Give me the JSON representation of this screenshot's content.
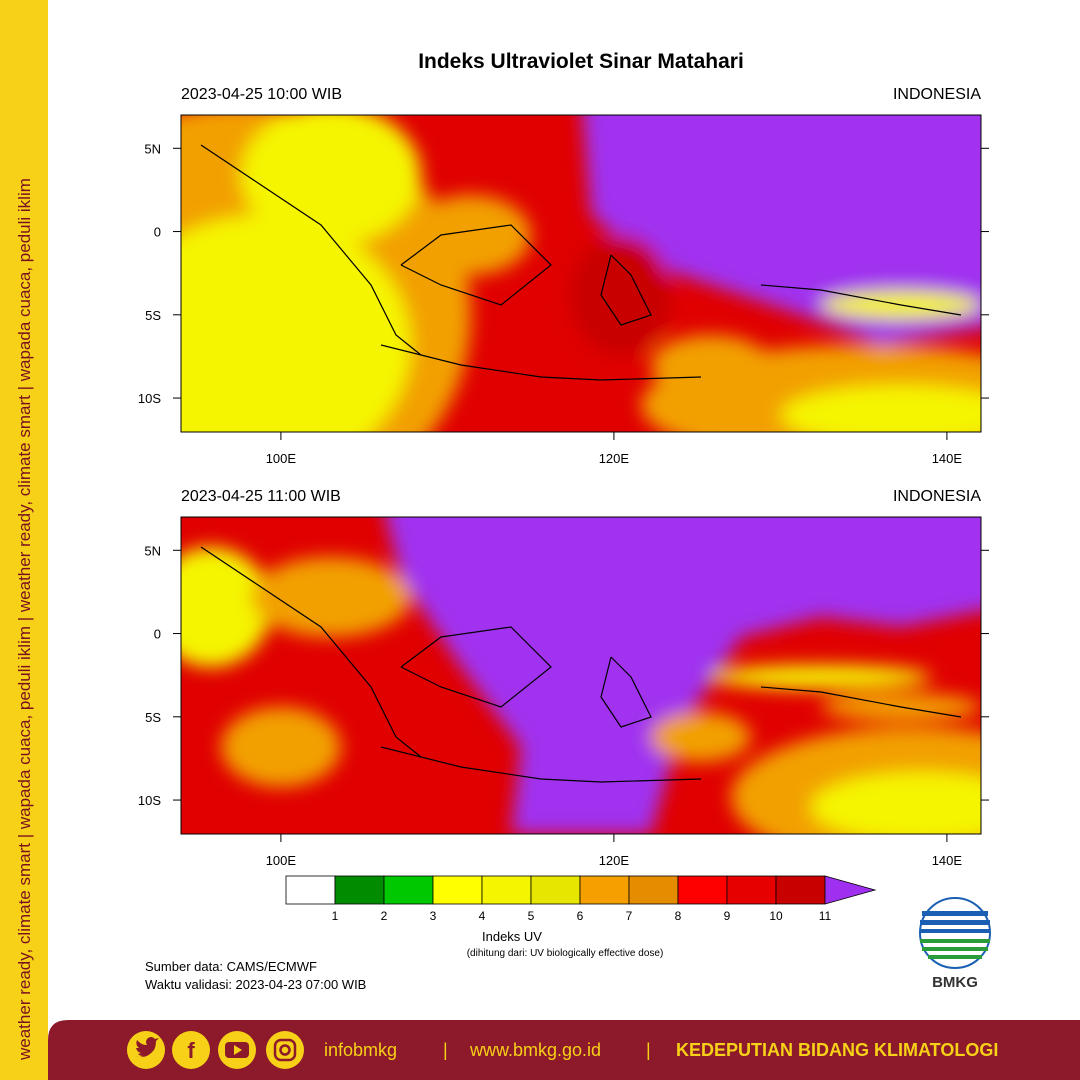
{
  "sidebar": "weather ready, climate smart | wapada cuaca, peduli iklim | weather ready, climate smart | wapada cuaca, peduli iklim",
  "title": "Indeks Ultraviolet Sinar Matahari",
  "panels": [
    {
      "time": "2023-04-25  10:00 WIB",
      "region": "INDONESIA"
    },
    {
      "time": "2023-04-25  11:00 WIB",
      "region": "INDONESIA"
    }
  ],
  "lat_labels": [
    "5N",
    "0",
    "5S",
    "10S"
  ],
  "lon_labels": [
    "100E",
    "120E",
    "140E"
  ],
  "colorbar": {
    "colors": [
      "#ffffff",
      "#008c00",
      "#00c800",
      "#ffff00",
      "#f5f500",
      "#e6e600",
      "#f5a000",
      "#e68c00",
      "#ff0000",
      "#e60000",
      "#c80000",
      "#a030f0"
    ],
    "ticks": [
      1,
      2,
      3,
      4,
      5,
      6,
      7,
      8,
      9,
      10,
      11
    ],
    "label": "Indeks UV",
    "note": "(dihitung dari: UV biologically effective dose)"
  },
  "source": "Sumber data: CAMS/ECMWF",
  "validity": "Waktu validasi: 2023-04-23 07:00 WIB",
  "logo": "BMKG",
  "footer": {
    "handle": "infobmkg",
    "separator": "|",
    "url": "www.bmkg.go.id",
    "org": "KEDEPUTIAN BIDANG KLIMATOLOGI"
  }
}
